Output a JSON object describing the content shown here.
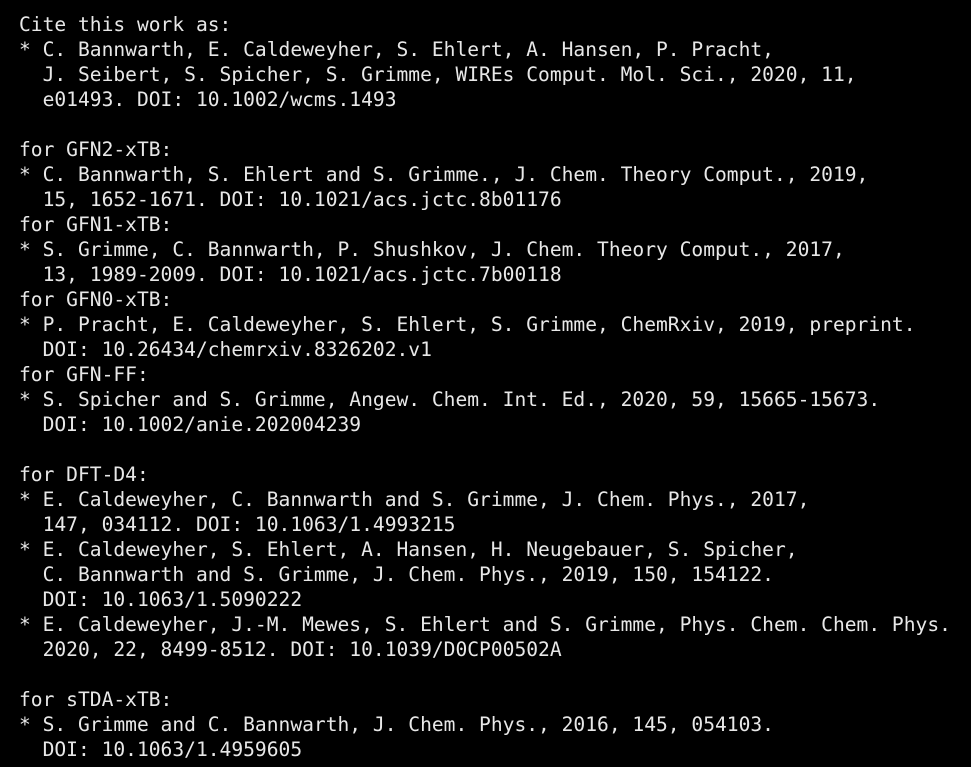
{
  "terminal": {
    "background": "#000000",
    "foreground": "#e8e8e8",
    "lines": [
      "Cite this work as:",
      "* C. Bannwarth, E. Caldeweyher, S. Ehlert, A. Hansen, P. Pracht,",
      "  J. Seibert, S. Spicher, S. Grimme, WIREs Comput. Mol. Sci., 2020, 11,",
      "  e01493. DOI: 10.1002/wcms.1493",
      "",
      "for GFN2-xTB:",
      "* C. Bannwarth, S. Ehlert and S. Grimme., J. Chem. Theory Comput., 2019,",
      "  15, 1652-1671. DOI: 10.1021/acs.jctc.8b01176",
      "for GFN1-xTB:",
      "* S. Grimme, C. Bannwarth, P. Shushkov, J. Chem. Theory Comput., 2017,",
      "  13, 1989-2009. DOI: 10.1021/acs.jctc.7b00118",
      "for GFN0-xTB:",
      "* P. Pracht, E. Caldeweyher, S. Ehlert, S. Grimme, ChemRxiv, 2019, preprint.",
      "  DOI: 10.26434/chemrxiv.8326202.v1",
      "for GFN-FF:",
      "* S. Spicher and S. Grimme, Angew. Chem. Int. Ed., 2020, 59, 15665-15673.",
      "  DOI: 10.1002/anie.202004239",
      "",
      "for DFT-D4:",
      "* E. Caldeweyher, C. Bannwarth and S. Grimme, J. Chem. Phys., 2017,",
      "  147, 034112. DOI: 10.1063/1.4993215",
      "* E. Caldeweyher, S. Ehlert, A. Hansen, H. Neugebauer, S. Spicher,",
      "  C. Bannwarth and S. Grimme, J. Chem. Phys., 2019, 150, 154122.",
      "  DOI: 10.1063/1.5090222",
      "* E. Caldeweyher, J.-M. Mewes, S. Ehlert and S. Grimme, Phys. Chem. Chem. Phys.",
      "  2020, 22, 8499-8512. DOI: 10.1039/D0CP00502A",
      "",
      "for sTDA-xTB:",
      "* S. Grimme and C. Bannwarth, J. Chem. Phys., 2016, 145, 054103.",
      "  DOI: 10.1063/1.4959605"
    ]
  }
}
